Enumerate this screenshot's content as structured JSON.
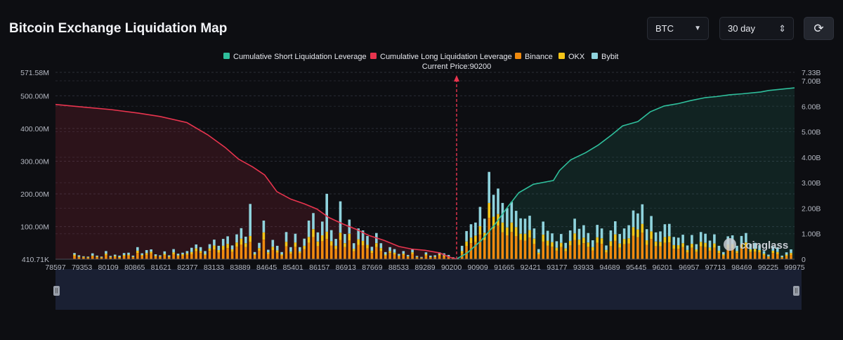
{
  "header": {
    "title": "Bitcoin Exchange Liquidation Map",
    "coin_select": "BTC",
    "range_select": "30 day",
    "refresh_icon": "refresh-icon"
  },
  "watermark": "coinglass",
  "colors": {
    "short_line": "#2fbf9c",
    "long_line": "#e8344e",
    "binance": "#f08a0e",
    "okx": "#f5c518",
    "bybit": "#8fd3dd",
    "current_price": "#e8344e"
  },
  "chart_data": {
    "type": "bar",
    "title": "Bitcoin Exchange Liquidation Map",
    "current_price_label": "Current Price:90200",
    "current_price": 90200,
    "legend": [
      "Cumulative Short Liquidation Leverage",
      "Cumulative Long Liquidation Leverage",
      "Binance",
      "OKX",
      "Bybit"
    ],
    "legend_placement": "top-center",
    "x_tick_labels": [
      "78597",
      "79353",
      "80109",
      "80865",
      "81621",
      "82377",
      "83133",
      "83889",
      "84645",
      "85401",
      "86157",
      "86913",
      "87669",
      "88533",
      "89289",
      "90200",
      "90909",
      "91665",
      "92421",
      "93177",
      "93933",
      "94689",
      "95445",
      "96201",
      "96957",
      "97713",
      "98469",
      "99225",
      "99975"
    ],
    "x_range": [
      78597,
      99975
    ],
    "y_left_ticks": [
      "410.71K",
      "100.00M",
      "200.00M",
      "300.00M",
      "400.00M",
      "500.00M",
      "571.58M"
    ],
    "y_left_range": [
      0.41,
      571.58
    ],
    "y_left_unit": "M",
    "y_right_ticks": [
      "0",
      "1.00B",
      "2.00B",
      "3.00B",
      "4.00B",
      "5.00B",
      "6.00B",
      "7.00B",
      "7.33B"
    ],
    "y_right_range": [
      0,
      7.33
    ],
    "y_right_unit": "B",
    "grid": true,
    "long_cumulative": {
      "name": "Cumulative Long Liquidation Leverage",
      "x": [
        78597,
        79400,
        80200,
        81000,
        81621,
        82400,
        83000,
        83500,
        83889,
        84300,
        84645,
        85000,
        85400,
        85800,
        86157,
        86500,
        86913,
        87300,
        87669,
        88100,
        88533,
        88900,
        89289,
        89700,
        90000,
        90200
      ],
      "y": [
        6.07,
        5.97,
        5.87,
        5.73,
        5.6,
        5.36,
        4.88,
        4.39,
        3.93,
        3.62,
        3.31,
        2.65,
        2.36,
        2.17,
        1.97,
        1.64,
        1.38,
        1.17,
        0.93,
        0.74,
        0.5,
        0.4,
        0.35,
        0.25,
        0.08,
        0.01
      ]
    },
    "short_cumulative": {
      "name": "Cumulative Short Liquidation Leverage",
      "x": [
        90200,
        90500,
        90909,
        91300,
        91665,
        92000,
        92421,
        93000,
        93177,
        93500,
        93933,
        94300,
        94689,
        95000,
        95445,
        95800,
        96201,
        96600,
        96957,
        97400,
        97713,
        98100,
        98469,
        99000,
        99225,
        99975
      ],
      "y": [
        0.01,
        0.24,
        0.73,
        1.35,
        2.03,
        2.61,
        2.94,
        3.09,
        3.48,
        3.9,
        4.18,
        4.48,
        4.88,
        5.23,
        5.4,
        5.78,
        6.01,
        6.1,
        6.22,
        6.34,
        6.38,
        6.45,
        6.49,
        6.56,
        6.62,
        6.72
      ]
    },
    "bars": {
      "unit": "M",
      "x": [
        79146,
        79276,
        79407,
        79537,
        79667,
        79798,
        79928,
        80058,
        80189,
        80319,
        80449,
        80580,
        80710,
        80841,
        80971,
        81101,
        81232,
        81362,
        81492,
        81623,
        81753,
        81883,
        82014,
        82144,
        82275,
        82405,
        82535,
        82666,
        82796,
        82926,
        83057,
        83187,
        83317,
        83448,
        83578,
        83709,
        83839,
        83969,
        84100,
        84230,
        84360,
        84491,
        84621,
        84751,
        84882,
        85012,
        85143,
        85273,
        85403,
        85534,
        85664,
        85794,
        85925,
        86055,
        86185,
        86316,
        86446,
        86577,
        86707,
        86837,
        86968,
        87098,
        87228,
        87359,
        87489,
        87619,
        87750,
        87880,
        88011,
        88141,
        88271,
        88402,
        88532,
        88662,
        88793,
        88923,
        89053,
        89184,
        89314,
        89445,
        89575,
        89705,
        89836,
        89966,
        90096,
        90227,
        90357,
        90487,
        90618,
        90748,
        90879,
        91009,
        91139,
        91270,
        91400,
        91530,
        91661,
        91791,
        91921,
        92052,
        92182,
        92313,
        92443,
        92573,
        92704,
        92834,
        92964,
        93095,
        93225,
        93355,
        93486,
        93616,
        93747,
        93877,
        94007,
        94138,
        94268,
        94398,
        94529,
        94659,
        94789,
        94920,
        95050,
        95181,
        95311,
        95441,
        95572,
        95702,
        95832,
        95963,
        96093,
        96223,
        96354,
        96484,
        96615,
        96745,
        96875,
        97006,
        97136,
        97266,
        97397,
        97527,
        97657,
        97788,
        97918,
        98049,
        98179,
        98309,
        98440,
        98570,
        98700,
        98831,
        98961,
        99091,
        99222,
        99352,
        99483,
        99613,
        99743,
        99874
      ],
      "binance": [
        10,
        6,
        5,
        4,
        9,
        6,
        4,
        12,
        5,
        7,
        4,
        9,
        11,
        6,
        19,
        10,
        14,
        18,
        8,
        7,
        12,
        6,
        15,
        9,
        11,
        13,
        16,
        24,
        19,
        12,
        25,
        30,
        20,
        29,
        34,
        22,
        38,
        45,
        37,
        52,
        12,
        26,
        60,
        16,
        28,
        20,
        11,
        39,
        17,
        37,
        18,
        31,
        50,
        68,
        40,
        55,
        62,
        42,
        31,
        59,
        37,
        58,
        24,
        44,
        42,
        33,
        19,
        37,
        25,
        11,
        19,
        15,
        8,
        13,
        7,
        16,
        5,
        4,
        11,
        5,
        6,
        11,
        8,
        6,
        3,
        2,
        18,
        40,
        49,
        52,
        75,
        59,
        126,
        94,
        103,
        82,
        73,
        83,
        71,
        59,
        57,
        66,
        47,
        15,
        54,
        42,
        38,
        26,
        37,
        24,
        42,
        59,
        44,
        49,
        37,
        27,
        50,
        47,
        21,
        40,
        56,
        35,
        46,
        48,
        72,
        67,
        81,
        44,
        62,
        40,
        39,
        50,
        51,
        32,
        32,
        37,
        21,
        35,
        22,
        39,
        37,
        26,
        35,
        19,
        11,
        33,
        34,
        19,
        33,
        37,
        22,
        23,
        21,
        12,
        7,
        19,
        16,
        5,
        10,
        14,
        4,
        13,
        8,
        7,
        2,
        8
      ],
      "okx": [
        4,
        2,
        2,
        2,
        2,
        2,
        2,
        5,
        2,
        3,
        3,
        4,
        3,
        2,
        7,
        3,
        5,
        5,
        3,
        2,
        4,
        3,
        6,
        3,
        4,
        5,
        6,
        9,
        6,
        4,
        8,
        12,
        8,
        12,
        13,
        8,
        13,
        18,
        12,
        19,
        4,
        8,
        22,
        5,
        10,
        7,
        4,
        14,
        6,
        14,
        6,
        10,
        18,
        24,
        14,
        18,
        22,
        13,
        10,
        22,
        12,
        20,
        8,
        17,
        14,
        11,
        7,
        12,
        9,
        4,
        6,
        5,
        3,
        4,
        2,
        5,
        2,
        1,
        4,
        2,
        2,
        4,
        3,
        2,
        1,
        1,
        7,
        14,
        17,
        20,
        26,
        22,
        46,
        36,
        35,
        30,
        24,
        29,
        27,
        19,
        21,
        23,
        16,
        5,
        21,
        15,
        14,
        9,
        13,
        9,
        14,
        20,
        16,
        17,
        14,
        10,
        17,
        17,
        7,
        15,
        20,
        13,
        16,
        16,
        26,
        24,
        27,
        14,
        23,
        14,
        14,
        18,
        19,
        11,
        11,
        12,
        7,
        12,
        8,
        14,
        13,
        10,
        13,
        7,
        4,
        12,
        12,
        6,
        13,
        14,
        8,
        8,
        7,
        5,
        2,
        7,
        6,
        2,
        4,
        5,
        1,
        4,
        3,
        3,
        1,
        3
      ],
      "bybit": [
        5,
        4,
        2,
        2,
        7,
        3,
        2,
        8,
        3,
        4,
        4,
        6,
        6,
        3,
        11,
        5,
        9,
        7,
        4,
        3,
        8,
        3,
        10,
        5,
        5,
        7,
        13,
        12,
        12,
        9,
        13,
        18,
        13,
        21,
        23,
        12,
        25,
        32,
        20,
        98,
        6,
        16,
        36,
        8,
        21,
        14,
        7,
        30,
        14,
        27,
        13,
        22,
        50,
        49,
        28,
        42,
        116,
        34,
        21,
        96,
        28,
        43,
        17,
        33,
        32,
        27,
        12,
        31,
        15,
        7,
        12,
        11,
        5,
        8,
        4,
        11,
        3,
        2,
        6,
        4,
        4,
        6,
        7,
        5,
        2,
        1,
        16,
        32,
        41,
        40,
        59,
        43,
        95,
        67,
        78,
        60,
        59,
        63,
        50,
        47,
        46,
        44,
        31,
        11,
        40,
        30,
        27,
        20,
        27,
        17,
        32,
        45,
        33,
        38,
        29,
        21,
        38,
        30,
        14,
        33,
        40,
        29,
        32,
        40,
        51,
        49,
        60,
        34,
        47,
        28,
        32,
        39,
        38,
        25,
        23,
        26,
        14,
        27,
        16,
        30,
        28,
        21,
        28,
        15,
        7,
        25,
        27,
        16,
        25,
        29,
        17,
        19,
        15,
        8,
        5,
        13,
        14,
        4,
        7,
        11,
        2,
        10,
        5,
        5,
        1,
        5
      ]
    }
  }
}
